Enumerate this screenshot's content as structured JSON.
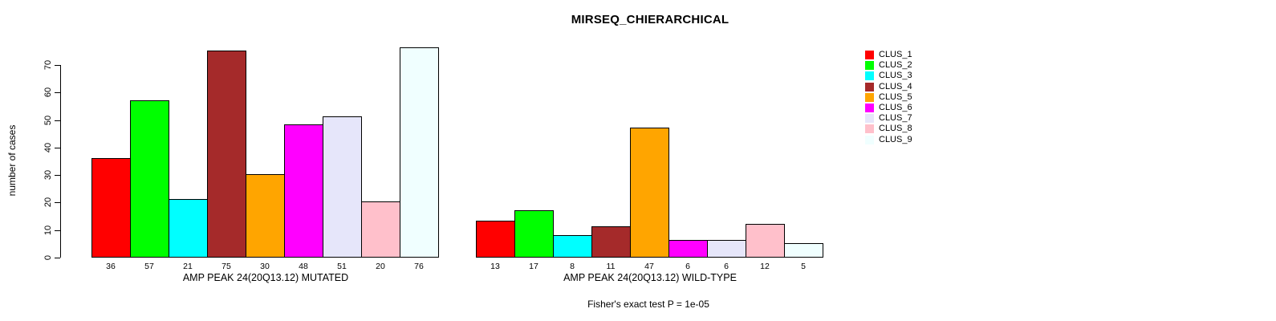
{
  "figure": {
    "title": "MIRSEQ_CHIERARCHICAL",
    "footer": "Fisher's exact test P = 1e-05",
    "background": "#ffffff"
  },
  "y_axis": {
    "label": "number of cases",
    "ticks": [
      0,
      10,
      20,
      30,
      40,
      50,
      60,
      70
    ],
    "range": [
      0,
      70
    ]
  },
  "legend": {
    "position": "top-right",
    "items": [
      {
        "label": "CLUS_1",
        "color": "#FF0000"
      },
      {
        "label": "CLUS_2",
        "color": "#00FF00"
      },
      {
        "label": "CLUS_3",
        "color": "#00FFFF"
      },
      {
        "label": "CLUS_4",
        "color": "#A52A2A"
      },
      {
        "label": "CLUS_5",
        "color": "#FFA500"
      },
      {
        "label": "CLUS_6",
        "color": "#FF00FF"
      },
      {
        "label": "CLUS_7",
        "color": "#E6E6FA"
      },
      {
        "label": "CLUS_8",
        "color": "#FFC0CB"
      },
      {
        "label": "CLUS_9",
        "color": "#F0FFFF"
      }
    ]
  },
  "chart_data": [
    {
      "type": "bar",
      "group": "mutated",
      "xlabel": "AMP PEAK 24(20Q13.12) MUTATED",
      "ylabel": "number of cases",
      "categories": [
        "CLUS_1",
        "CLUS_2",
        "CLUS_3",
        "CLUS_4",
        "CLUS_5",
        "CLUS_6",
        "CLUS_7",
        "CLUS_8",
        "CLUS_9"
      ],
      "values": [
        36,
        57,
        21,
        75,
        30,
        48,
        51,
        20,
        76
      ],
      "colors": [
        "#FF0000",
        "#00FF00",
        "#00FFFF",
        "#A52A2A",
        "#FFA500",
        "#FF00FF",
        "#E6E6FA",
        "#FFC0CB",
        "#F0FFFF"
      ],
      "bar_border_color": "#000000",
      "ylim": [
        0,
        70
      ],
      "grid": false
    },
    {
      "type": "bar",
      "group": "wild-type",
      "xlabel": "AMP PEAK 24(20Q13.12) WILD-TYPE",
      "ylabel": "number of cases",
      "categories": [
        "CLUS_1",
        "CLUS_2",
        "CLUS_3",
        "CLUS_4",
        "CLUS_5",
        "CLUS_6",
        "CLUS_7",
        "CLUS_8",
        "CLUS_9"
      ],
      "values": [
        13,
        17,
        8,
        11,
        47,
        6,
        6,
        12,
        5
      ],
      "colors": [
        "#FF0000",
        "#00FF00",
        "#00FFFF",
        "#A52A2A",
        "#FFA500",
        "#FF00FF",
        "#E6E6FA",
        "#FFC0CB",
        "#F0FFFF"
      ],
      "bar_border_color": "#000000",
      "ylim": [
        0,
        70
      ],
      "grid": false
    }
  ]
}
